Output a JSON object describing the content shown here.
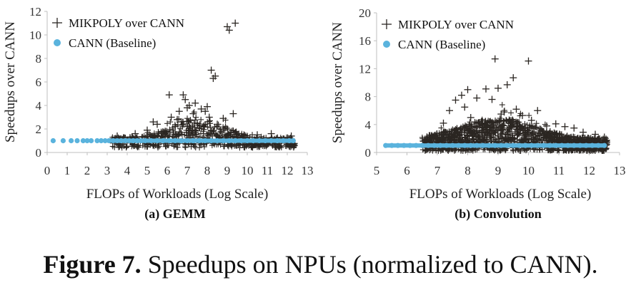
{
  "caption": {
    "label": "Figure 7.",
    "text": "Speedups on NPUs (normalized to CANN)."
  },
  "colors": {
    "mikpoly": "#2b2622",
    "baseline": "#5ab3dd",
    "axis": "#bfbfbf"
  },
  "chart_data": [
    {
      "type": "scatter",
      "subcaption": "(a) GEMM",
      "xlabel": "FLOPs of Workloads (Log Scale)",
      "ylabel": "Speedups over CANN",
      "xlim": [
        0,
        13
      ],
      "ylim": [
        0,
        12
      ],
      "x_ticks": [
        0,
        1,
        2,
        3,
        4,
        5,
        6,
        7,
        8,
        9,
        10,
        11,
        12,
        13
      ],
      "y_ticks": [
        0,
        2,
        4,
        6,
        8,
        10,
        12
      ],
      "legend": {
        "position": "top-left",
        "entries": [
          "MIKPOLY over CANN",
          "CANN (Baseline)"
        ]
      },
      "series": [
        {
          "name": "MIKPOLY over CANN",
          "marker": "plus",
          "x": [
            3.5,
            4.4,
            5.0,
            5.3,
            5.5,
            5.9,
            6.1,
            6.2,
            6.4,
            6.5,
            6.6,
            6.7,
            6.8,
            6.9,
            7.0,
            7.1,
            7.3,
            7.4,
            7.5,
            7.7,
            7.9,
            8.0,
            8.1,
            8.2,
            8.3,
            8.4,
            8.5,
            8.8,
            9.0,
            9.1,
            9.3,
            9.4,
            10.5,
            11.2,
            12.2
          ],
          "y": [
            1.4,
            1.6,
            1.9,
            2.6,
            2.4,
            1.8,
            4.9,
            3.0,
            2.2,
            2.8,
            3.5,
            2.6,
            4.9,
            4.5,
            3.8,
            4.0,
            3.3,
            4.2,
            2.5,
            3.7,
            3.5,
            3.9,
            3.0,
            7.0,
            6.3,
            6.5,
            2.4,
            2.9,
            10.7,
            10.4,
            3.3,
            11.0,
            1.5,
            1.6,
            1.4
          ]
        },
        {
          "name": "CANN (Baseline)",
          "marker": "dot",
          "x": [
            0.3,
            0.8,
            1.2,
            1.5,
            1.8,
            2.0,
            2.2,
            2.5,
            2.7,
            2.9,
            3.1,
            3.3,
            3.5,
            3.7,
            3.9,
            4.1,
            4.3,
            4.5,
            4.7,
            4.9,
            5.2,
            5.5,
            5.8,
            6.1,
            6.4,
            6.7,
            7.0,
            7.3,
            7.6,
            7.9,
            8.2,
            8.5,
            8.8,
            9.1,
            9.4,
            9.7,
            10.0,
            10.3,
            10.6,
            10.9,
            11.2,
            11.5,
            11.8,
            12.1,
            12.3
          ],
          "y": [
            1,
            1,
            1,
            1,
            1,
            1,
            1,
            1,
            1,
            1,
            1,
            1,
            1,
            1,
            1,
            1,
            1,
            1,
            1,
            1,
            1,
            1,
            1,
            1,
            1,
            1,
            1,
            1,
            1,
            1,
            1,
            1,
            1,
            1,
            1,
            1,
            1,
            1,
            1,
            1,
            1,
            1,
            1,
            1,
            1
          ]
        }
      ]
    },
    {
      "type": "scatter",
      "subcaption": "(b) Convolution",
      "xlabel": "FLOPs of Workloads (Log Scale)",
      "ylabel": "Speedups over CANN",
      "xlim": [
        5,
        13
      ],
      "ylim": [
        0,
        20
      ],
      "x_ticks": [
        5,
        6,
        7,
        8,
        9,
        10,
        11,
        12,
        13
      ],
      "y_ticks": [
        0,
        4,
        8,
        12,
        16,
        20
      ],
      "legend": {
        "position": "top-left",
        "entries": [
          "MIKPOLY over CANN",
          "CANN (Baseline)"
        ]
      },
      "series": [
        {
          "name": "MIKPOLY over CANN",
          "marker": "plus",
          "x": [
            7.2,
            7.4,
            7.6,
            7.8,
            7.9,
            8.0,
            8.1,
            8.3,
            8.6,
            8.8,
            8.9,
            9.0,
            9.1,
            9.2,
            9.3,
            9.5,
            9.6,
            9.8,
            10.0,
            10.1,
            10.3,
            10.6,
            10.9,
            11.2,
            11.5,
            11.8,
            12.2,
            12.5
          ],
          "y": [
            4.2,
            6.0,
            7.5,
            8.2,
            6.5,
            9.0,
            5.0,
            7.8,
            9.1,
            7.6,
            13.4,
            9.2,
            5.5,
            5.8,
            9.7,
            10.7,
            6.2,
            5.3,
            13.1,
            4.6,
            6.0,
            3.8,
            4.1,
            3.7,
            3.5,
            2.9,
            2.6,
            2.2
          ]
        },
        {
          "name": "CANN (Baseline)",
          "marker": "dot",
          "x": [
            5.3,
            5.5,
            5.7,
            5.9,
            6.1,
            6.3,
            6.5,
            6.7,
            6.9,
            7.1,
            7.3,
            7.5,
            7.7,
            7.9,
            8.1,
            8.3,
            8.5,
            8.7,
            8.9,
            9.1,
            9.3,
            9.5,
            9.7,
            9.9,
            10.1,
            10.3,
            10.5,
            10.7,
            10.9,
            11.1,
            11.3,
            11.5,
            11.7,
            11.9,
            12.1,
            12.3,
            12.5
          ],
          "y": [
            1,
            1,
            1,
            1,
            1,
            1,
            1,
            1,
            1,
            1,
            1,
            1,
            1,
            1,
            1,
            1,
            1,
            1,
            1,
            1,
            1,
            1,
            1,
            1,
            1,
            1,
            1,
            1,
            1,
            1,
            1,
            1,
            1,
            1,
            1,
            1,
            1
          ]
        }
      ]
    }
  ]
}
